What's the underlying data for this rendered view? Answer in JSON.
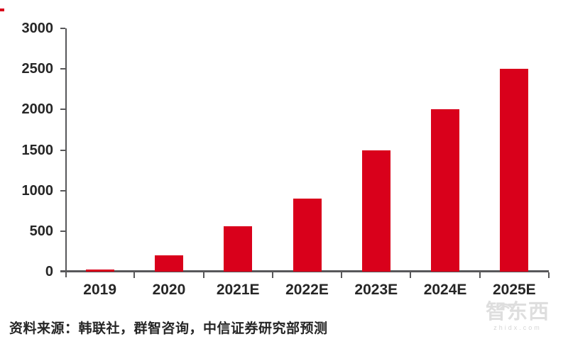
{
  "chart_data": {
    "type": "bar",
    "title": "",
    "categories": [
      "2019",
      "2020",
      "2021E",
      "2022E",
      "2023E",
      "2024E",
      "2025E"
    ],
    "values": [
      30,
      200,
      560,
      900,
      1500,
      2000,
      2500
    ],
    "xlabel": "",
    "ylabel": "",
    "ylim": [
      0,
      3000
    ],
    "yticks": [
      0,
      500,
      1000,
      1500,
      2000,
      2500,
      3000
    ],
    "grid": false,
    "legend_position": "none",
    "bar_color": "#d9001b",
    "axis_color": "#58585a",
    "label_color": "#262626"
  },
  "source_note": "资料来源：韩联社，群智咨询，中信证券研究部预测",
  "watermark": {
    "logo_text": "智东西",
    "domain": "zhidx.com"
  }
}
